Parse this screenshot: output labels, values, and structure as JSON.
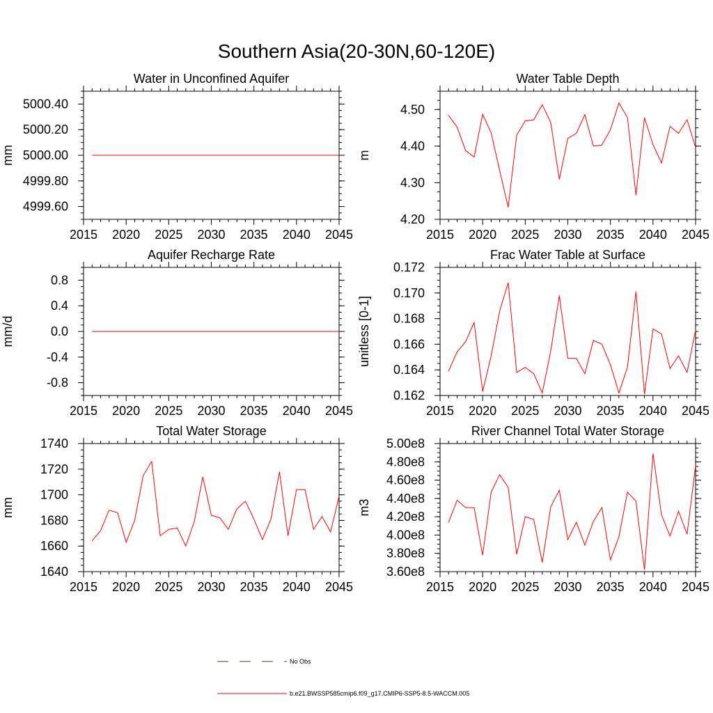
{
  "figure_title": "Southern Asia(20-30N,60-120E)",
  "chart_data": [
    {
      "type": "line",
      "title": "Water in Unconfined Aquifer",
      "xlabel": "",
      "ylabel": "mm",
      "xlim": [
        2015,
        2045
      ],
      "ylim": [
        4999.5,
        5000.5
      ],
      "xticks": [
        2015,
        2020,
        2025,
        2030,
        2035,
        2040,
        2045
      ],
      "yticks": [
        4999.6,
        4999.8,
        5000.0,
        5000.2,
        5000.4
      ],
      "ytick_labels": [
        "4999.60",
        "4999.80",
        "5000.00",
        "5000.20",
        "5000.40"
      ],
      "x": [
        2016,
        2045
      ],
      "series": [
        {
          "name": "b.e21.BWSSP585cmip6.f09_g17.CMIP6-SSP5-8.5-WACCM.005",
          "color": "#ff0000",
          "values": [
            5000.0,
            5000.0
          ]
        }
      ]
    },
    {
      "type": "line",
      "title": "Water Table Depth",
      "xlabel": "",
      "ylabel": "m",
      "xlim": [
        2015,
        2045
      ],
      "ylim": [
        4.2,
        4.55
      ],
      "xticks": [
        2015,
        2020,
        2025,
        2030,
        2035,
        2040,
        2045
      ],
      "yticks": [
        4.2,
        4.3,
        4.4,
        4.5
      ],
      "ytick_labels": [
        "4.20",
        "4.30",
        "4.40",
        "4.50"
      ],
      "x": [
        2016,
        2017,
        2018,
        2019,
        2020,
        2021,
        2022,
        2023,
        2024,
        2025,
        2026,
        2027,
        2028,
        2029,
        2030,
        2031,
        2032,
        2033,
        2034,
        2035,
        2036,
        2037,
        2038,
        2039,
        2040,
        2041,
        2042,
        2043,
        2044,
        2045
      ],
      "series": [
        {
          "name": "b.e21.BWSSP585cmip6.f09_g17.CMIP6-SSP5-8.5-WACCM.005",
          "color": "#ff0000",
          "values": [
            4.484,
            4.452,
            4.388,
            4.37,
            4.487,
            4.436,
            4.333,
            4.233,
            4.43,
            4.469,
            4.472,
            4.513,
            4.464,
            4.309,
            4.421,
            4.435,
            4.486,
            4.4,
            4.403,
            4.445,
            4.518,
            4.478,
            4.266,
            4.478,
            4.404,
            4.354,
            4.454,
            4.435,
            4.472,
            4.397
          ]
        }
      ]
    },
    {
      "type": "line",
      "title": "Aquifer Recharge Rate",
      "xlabel": "",
      "ylabel": "mm/d",
      "xlim": [
        2015,
        2045
      ],
      "ylim": [
        -1.0,
        1.0
      ],
      "xticks": [
        2015,
        2020,
        2025,
        2030,
        2035,
        2040,
        2045
      ],
      "yticks": [
        -0.8,
        -0.4,
        0.0,
        0.4,
        0.8
      ],
      "ytick_labels": [
        "-0.8",
        "-0.4",
        "0.0",
        "0.4",
        "0.8"
      ],
      "x": [
        2016,
        2045
      ],
      "series": [
        {
          "name": "b.e21.BWSSP585cmip6.f09_g17.CMIP6-SSP5-8.5-WACCM.005",
          "color": "#ff0000",
          "values": [
            0.0,
            0.0
          ]
        }
      ]
    },
    {
      "type": "line",
      "title": "Frac Water Table at Surface",
      "xlabel": "",
      "ylabel": "unitless [0-1]",
      "xlim": [
        2015,
        2045
      ],
      "ylim": [
        0.162,
        0.172
      ],
      "xticks": [
        2015,
        2020,
        2025,
        2030,
        2035,
        2040,
        2045
      ],
      "yticks": [
        0.162,
        0.164,
        0.166,
        0.168,
        0.17,
        0.172
      ],
      "ytick_labels": [
        "0.162",
        "0.164",
        "0.166",
        "0.168",
        "0.170",
        "0.172"
      ],
      "x": [
        2016,
        2017,
        2018,
        2019,
        2020,
        2021,
        2022,
        2023,
        2024,
        2025,
        2026,
        2027,
        2028,
        2029,
        2030,
        2031,
        2032,
        2033,
        2034,
        2035,
        2036,
        2037,
        2038,
        2039,
        2040,
        2041,
        2042,
        2043,
        2044,
        2045
      ],
      "series": [
        {
          "name": "b.e21.BWSSP585cmip6.f09_g17.CMIP6-SSP5-8.5-WACCM.005",
          "color": "#ff0000",
          "values": [
            0.1639,
            0.1654,
            0.1662,
            0.1677,
            0.1623,
            0.1651,
            0.1686,
            0.1708,
            0.1638,
            0.1642,
            0.1637,
            0.1622,
            0.1655,
            0.1698,
            0.1649,
            0.1649,
            0.1637,
            0.1663,
            0.166,
            0.1644,
            0.1622,
            0.1642,
            0.1701,
            0.1621,
            0.1672,
            0.1668,
            0.1641,
            0.1651,
            0.1638,
            0.1671
          ]
        }
      ]
    },
    {
      "type": "line",
      "title": "Total Water Storage",
      "xlabel": "",
      "ylabel": "mm",
      "xlim": [
        2015,
        2045
      ],
      "ylim": [
        1640,
        1740
      ],
      "xticks": [
        2015,
        2020,
        2025,
        2030,
        2035,
        2040,
        2045
      ],
      "yticks": [
        1640,
        1660,
        1680,
        1700,
        1720,
        1740
      ],
      "ytick_labels": [
        "1640",
        "1660",
        "1680",
        "1700",
        "1720",
        "1740"
      ],
      "x": [
        2016,
        2017,
        2018,
        2019,
        2020,
        2021,
        2022,
        2023,
        2024,
        2025,
        2026,
        2027,
        2028,
        2029,
        2030,
        2031,
        2032,
        2033,
        2034,
        2035,
        2036,
        2037,
        2038,
        2039,
        2040,
        2041,
        2042,
        2043,
        2044,
        2045
      ],
      "series": [
        {
          "name": "b.e21.BWSSP585cmip6.f09_g17.CMIP6-SSP5-8.5-WACCM.005",
          "color": "#ff0000",
          "values": [
            1664,
            1672,
            1688,
            1686,
            1663,
            1680,
            1715,
            1726,
            1668,
            1673,
            1674,
            1660,
            1679,
            1714,
            1684,
            1682,
            1673,
            1689,
            1695,
            1681,
            1665,
            1681,
            1718,
            1668,
            1704,
            1704,
            1673,
            1683,
            1671,
            1699
          ]
        }
      ]
    },
    {
      "type": "line",
      "title": "River Channel Total Water Storage",
      "xlabel": "",
      "ylabel": "m3",
      "xlim": [
        2015,
        2045
      ],
      "ylim": [
        360000000.0,
        500000000.0
      ],
      "xticks": [
        2015,
        2020,
        2025,
        2030,
        2035,
        2040,
        2045
      ],
      "yticks": [
        360000000.0,
        380000000.0,
        400000000.0,
        420000000.0,
        440000000.0,
        460000000.0,
        480000000.0,
        500000000.0
      ],
      "ytick_labels": [
        "3.60e8",
        "3.80e8",
        "4.00e8",
        "4.20e8",
        "4.40e8",
        "4.60e8",
        "4.80e8",
        "5.00e8"
      ],
      "x": [
        2016,
        2017,
        2018,
        2019,
        2020,
        2021,
        2022,
        2023,
        2024,
        2025,
        2026,
        2027,
        2028,
        2029,
        2030,
        2031,
        2032,
        2033,
        2034,
        2035,
        2036,
        2037,
        2038,
        2039,
        2040,
        2041,
        2042,
        2043,
        2044,
        2045
      ],
      "series": [
        {
          "name": "b.e21.BWSSP585cmip6.f09_g17.CMIP6-SSP5-8.5-WACCM.005",
          "color": "#ff0000",
          "values": [
            414000000.0,
            438000000.0,
            430000000.0,
            430000000.0,
            378000000.0,
            447000000.0,
            466000000.0,
            452000000.0,
            379000000.0,
            420000000.0,
            417000000.0,
            370000000.0,
            431000000.0,
            449000000.0,
            395000000.0,
            414000000.0,
            389000000.0,
            415000000.0,
            430000000.0,
            373000000.0,
            398000000.0,
            447000000.0,
            437000000.0,
            362000000.0,
            489000000.0,
            422000000.0,
            399000000.0,
            426000000.0,
            401000000.0,
            476000000.0
          ]
        }
      ]
    }
  ],
  "legend": {
    "position": "bottom-center",
    "items": [
      {
        "label": "No Obs",
        "color": "#3333aa",
        "style": "dashed"
      },
      {
        "label": "b.e21.BWSSP585cmip6.f09_g17.CMIP6-SSP5-8.5-WACCM.005",
        "color": "#ff0000",
        "style": "solid"
      }
    ]
  }
}
